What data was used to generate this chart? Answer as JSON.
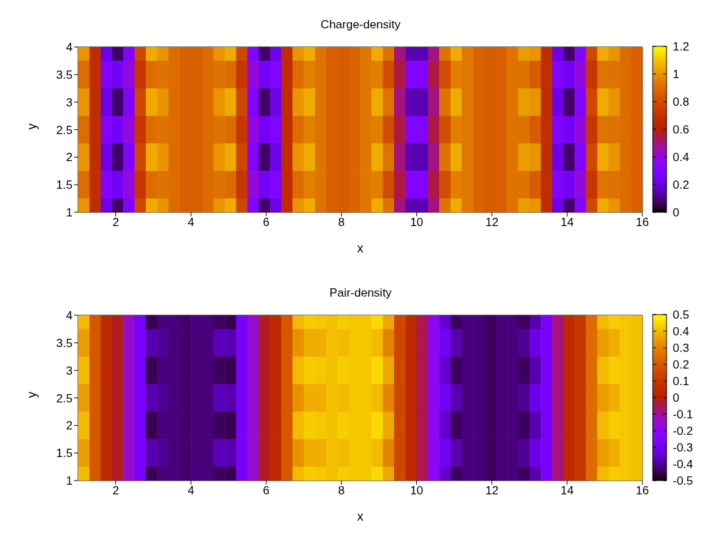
{
  "chart_data": [
    {
      "type": "heatmap",
      "title": "Charge-density",
      "xlabel": "x",
      "ylabel": "y",
      "x": [
        1.15,
        1.45,
        1.75,
        2.05,
        2.35,
        2.65,
        2.95,
        3.25,
        3.55,
        3.85,
        4.15,
        4.45,
        4.75,
        5.05,
        5.35,
        5.65,
        5.95,
        6.25,
        6.55,
        6.85,
        7.15,
        7.45,
        7.75,
        8.05,
        8.35,
        8.65,
        8.95,
        9.25,
        9.55,
        9.85,
        10.15,
        10.45,
        10.75,
        11.05,
        11.35,
        11.65,
        11.95,
        12.25,
        12.55,
        12.85,
        13.15,
        13.45,
        13.75,
        14.05,
        14.35,
        14.65,
        14.95,
        15.25,
        15.55,
        15.85
      ],
      "y": [
        4,
        3.5,
        3,
        2.5,
        2,
        1.5,
        1
      ],
      "cells": [
        [
          1.0,
          0.68,
          0.22,
          0.08,
          0.3,
          0.78,
          1.05,
          1.0,
          0.9,
          0.86,
          0.86,
          0.9,
          1.0,
          1.05,
          0.78,
          0.3,
          0.08,
          0.22,
          0.68,
          1.0,
          1.05,
          0.92,
          0.86,
          0.85,
          0.88,
          0.93,
          1.05,
          0.92,
          0.5,
          0.15,
          0.15,
          0.5,
          0.92,
          1.05,
          0.93,
          0.88,
          0.85,
          0.86,
          0.92,
          1.02,
          1.0,
          0.68,
          0.22,
          0.08,
          0.3,
          0.78,
          1.05,
          1.0,
          0.9,
          0.86
        ],
        [
          0.9,
          0.68,
          0.3,
          0.25,
          0.4,
          0.72,
          0.9,
          0.92,
          0.9,
          0.86,
          0.86,
          0.9,
          0.92,
          0.9,
          0.72,
          0.4,
          0.25,
          0.3,
          0.68,
          0.9,
          0.95,
          0.92,
          0.86,
          0.85,
          0.88,
          0.93,
          0.95,
          0.8,
          0.55,
          0.3,
          0.3,
          0.55,
          0.8,
          0.95,
          0.93,
          0.88,
          0.85,
          0.86,
          0.92,
          0.92,
          0.85,
          0.68,
          0.3,
          0.25,
          0.4,
          0.72,
          0.92,
          0.92,
          0.9,
          0.86
        ],
        [
          1.0,
          0.68,
          0.22,
          0.08,
          0.3,
          0.78,
          1.05,
          1.0,
          0.9,
          0.86,
          0.86,
          0.9,
          1.0,
          1.05,
          0.78,
          0.3,
          0.08,
          0.22,
          0.68,
          1.0,
          1.05,
          0.92,
          0.86,
          0.85,
          0.88,
          0.93,
          1.05,
          0.92,
          0.5,
          0.15,
          0.15,
          0.5,
          0.92,
          1.05,
          0.93,
          0.88,
          0.85,
          0.86,
          0.92,
          1.02,
          1.0,
          0.68,
          0.22,
          0.08,
          0.3,
          0.78,
          1.05,
          1.0,
          0.9,
          0.86
        ],
        [
          0.9,
          0.68,
          0.3,
          0.25,
          0.4,
          0.72,
          0.9,
          0.92,
          0.9,
          0.86,
          0.86,
          0.9,
          0.92,
          0.9,
          0.72,
          0.4,
          0.25,
          0.3,
          0.68,
          0.9,
          0.95,
          0.92,
          0.86,
          0.85,
          0.88,
          0.93,
          0.95,
          0.8,
          0.55,
          0.3,
          0.3,
          0.55,
          0.8,
          0.95,
          0.93,
          0.88,
          0.85,
          0.86,
          0.92,
          0.92,
          0.85,
          0.68,
          0.3,
          0.25,
          0.4,
          0.72,
          0.92,
          0.92,
          0.9,
          0.86
        ],
        [
          1.0,
          0.68,
          0.22,
          0.08,
          0.3,
          0.78,
          1.05,
          1.0,
          0.9,
          0.86,
          0.86,
          0.9,
          1.0,
          1.05,
          0.78,
          0.3,
          0.08,
          0.22,
          0.68,
          1.0,
          1.05,
          0.92,
          0.86,
          0.85,
          0.88,
          0.93,
          1.05,
          0.92,
          0.5,
          0.15,
          0.15,
          0.5,
          0.92,
          1.05,
          0.93,
          0.88,
          0.85,
          0.86,
          0.92,
          1.02,
          1.0,
          0.68,
          0.22,
          0.08,
          0.3,
          0.78,
          1.05,
          1.0,
          0.9,
          0.86
        ],
        [
          0.9,
          0.68,
          0.3,
          0.25,
          0.4,
          0.72,
          0.9,
          0.92,
          0.9,
          0.86,
          0.86,
          0.9,
          0.92,
          0.9,
          0.72,
          0.4,
          0.25,
          0.3,
          0.68,
          0.9,
          0.95,
          0.92,
          0.86,
          0.85,
          0.88,
          0.93,
          0.95,
          0.8,
          0.55,
          0.3,
          0.3,
          0.55,
          0.8,
          0.95,
          0.93,
          0.88,
          0.85,
          0.86,
          0.92,
          0.92,
          0.85,
          0.68,
          0.3,
          0.25,
          0.4,
          0.72,
          0.92,
          0.92,
          0.9,
          0.86
        ],
        [
          1.0,
          0.68,
          0.22,
          0.08,
          0.3,
          0.78,
          1.05,
          1.0,
          0.9,
          0.86,
          0.86,
          0.9,
          1.0,
          1.05,
          0.78,
          0.3,
          0.08,
          0.22,
          0.68,
          1.0,
          1.05,
          0.92,
          0.86,
          0.85,
          0.88,
          0.93,
          1.05,
          0.92,
          0.5,
          0.15,
          0.15,
          0.5,
          0.92,
          1.05,
          0.93,
          0.88,
          0.85,
          0.86,
          0.92,
          1.02,
          1.0,
          0.68,
          0.22,
          0.08,
          0.3,
          0.78,
          1.05,
          1.0,
          0.9,
          0.86
        ]
      ],
      "clim": [
        0,
        1.2
      ],
      "cticks": [
        0,
        0.2,
        0.4,
        0.6,
        0.8,
        1,
        1.2
      ],
      "xlim": [
        1,
        16
      ],
      "xticks": [
        2,
        4,
        6,
        8,
        10,
        12,
        14,
        16
      ],
      "ylim": [
        1,
        4
      ],
      "yticks": [
        1,
        1.5,
        2,
        2.5,
        3,
        3.5,
        4
      ]
    },
    {
      "type": "heatmap",
      "title": "Pair-density",
      "xlabel": "x",
      "ylabel": "y",
      "x": [
        1.15,
        1.45,
        1.75,
        2.05,
        2.35,
        2.65,
        2.95,
        3.25,
        3.55,
        3.85,
        4.15,
        4.45,
        4.75,
        5.05,
        5.35,
        5.65,
        5.95,
        6.25,
        6.55,
        6.85,
        7.15,
        7.45,
        7.75,
        8.05,
        8.35,
        8.65,
        8.95,
        9.25,
        9.55,
        9.85,
        10.15,
        10.45,
        10.75,
        11.05,
        11.35,
        11.65,
        11.95,
        12.25,
        12.55,
        12.85,
        13.15,
        13.45,
        13.75,
        14.05,
        14.35,
        14.65,
        14.95,
        15.25,
        15.55,
        15.85
      ],
      "y": [
        4,
        3.5,
        3,
        2.5,
        2,
        1.5,
        1
      ],
      "cells": [
        [
          0.4,
          0.2,
          0.05,
          -0.02,
          -0.15,
          -0.28,
          -0.45,
          -0.42,
          -0.42,
          -0.43,
          -0.42,
          -0.42,
          -0.44,
          -0.45,
          -0.28,
          -0.15,
          -0.02,
          0.05,
          0.2,
          0.4,
          0.43,
          0.42,
          0.41,
          0.43,
          0.42,
          0.42,
          0.45,
          0.37,
          0.15,
          0.05,
          -0.05,
          -0.2,
          -0.35,
          -0.44,
          -0.42,
          -0.42,
          -0.44,
          -0.42,
          -0.42,
          -0.44,
          -0.38,
          -0.28,
          -0.08,
          0.05,
          0.1,
          0.25,
          0.4,
          0.43,
          0.42,
          0.41
        ],
        [
          0.35,
          0.2,
          0.05,
          -0.02,
          -0.15,
          -0.28,
          -0.38,
          -0.4,
          -0.42,
          -0.43,
          -0.42,
          -0.42,
          -0.37,
          -0.38,
          -0.28,
          -0.15,
          -0.02,
          0.05,
          0.2,
          0.33,
          0.38,
          0.38,
          0.41,
          0.4,
          0.42,
          0.42,
          0.4,
          0.3,
          0.15,
          0.05,
          -0.05,
          -0.2,
          -0.3,
          -0.38,
          -0.42,
          -0.42,
          -0.44,
          -0.42,
          -0.42,
          -0.4,
          -0.32,
          -0.28,
          -0.08,
          0.05,
          0.1,
          0.25,
          0.35,
          0.38,
          0.42,
          0.41
        ],
        [
          0.4,
          0.2,
          0.05,
          -0.02,
          -0.15,
          -0.28,
          -0.45,
          -0.42,
          -0.42,
          -0.43,
          -0.42,
          -0.42,
          -0.44,
          -0.45,
          -0.28,
          -0.15,
          -0.02,
          0.05,
          0.2,
          0.4,
          0.43,
          0.42,
          0.41,
          0.43,
          0.42,
          0.42,
          0.45,
          0.37,
          0.15,
          0.05,
          -0.05,
          -0.2,
          -0.35,
          -0.44,
          -0.42,
          -0.42,
          -0.44,
          -0.42,
          -0.42,
          -0.44,
          -0.38,
          -0.28,
          -0.08,
          0.05,
          0.1,
          0.25,
          0.4,
          0.43,
          0.42,
          0.41
        ],
        [
          0.35,
          0.2,
          0.05,
          -0.02,
          -0.15,
          -0.28,
          -0.38,
          -0.4,
          -0.42,
          -0.43,
          -0.42,
          -0.42,
          -0.37,
          -0.38,
          -0.28,
          -0.15,
          -0.02,
          0.05,
          0.2,
          0.33,
          0.38,
          0.38,
          0.41,
          0.4,
          0.42,
          0.42,
          0.4,
          0.3,
          0.15,
          0.05,
          -0.05,
          -0.2,
          -0.3,
          -0.38,
          -0.42,
          -0.42,
          -0.44,
          -0.42,
          -0.42,
          -0.4,
          -0.32,
          -0.28,
          -0.08,
          0.05,
          0.1,
          0.25,
          0.35,
          0.38,
          0.42,
          0.41
        ],
        [
          0.4,
          0.2,
          0.05,
          -0.02,
          -0.15,
          -0.28,
          -0.45,
          -0.42,
          -0.42,
          -0.43,
          -0.42,
          -0.42,
          -0.44,
          -0.45,
          -0.28,
          -0.15,
          -0.02,
          0.05,
          0.2,
          0.4,
          0.43,
          0.42,
          0.41,
          0.43,
          0.42,
          0.42,
          0.45,
          0.37,
          0.15,
          0.05,
          -0.05,
          -0.2,
          -0.35,
          -0.44,
          -0.42,
          -0.42,
          -0.44,
          -0.42,
          -0.42,
          -0.44,
          -0.38,
          -0.28,
          -0.08,
          0.05,
          0.1,
          0.25,
          0.4,
          0.43,
          0.42,
          0.41
        ],
        [
          0.35,
          0.2,
          0.05,
          -0.02,
          -0.15,
          -0.28,
          -0.38,
          -0.4,
          -0.42,
          -0.43,
          -0.42,
          -0.42,
          -0.37,
          -0.38,
          -0.28,
          -0.15,
          -0.02,
          0.05,
          0.2,
          0.33,
          0.38,
          0.38,
          0.41,
          0.4,
          0.42,
          0.42,
          0.4,
          0.3,
          0.15,
          0.05,
          -0.05,
          -0.2,
          -0.3,
          -0.38,
          -0.42,
          -0.42,
          -0.44,
          -0.42,
          -0.42,
          -0.4,
          -0.32,
          -0.28,
          -0.08,
          0.05,
          0.1,
          0.25,
          0.35,
          0.38,
          0.42,
          0.41
        ],
        [
          0.4,
          0.2,
          0.05,
          -0.02,
          -0.15,
          -0.28,
          -0.45,
          -0.42,
          -0.42,
          -0.43,
          -0.42,
          -0.42,
          -0.44,
          -0.45,
          -0.28,
          -0.15,
          -0.02,
          0.05,
          0.2,
          0.4,
          0.43,
          0.42,
          0.41,
          0.43,
          0.42,
          0.42,
          0.45,
          0.37,
          0.15,
          0.05,
          -0.05,
          -0.2,
          -0.35,
          -0.44,
          -0.42,
          -0.42,
          -0.44,
          -0.42,
          -0.42,
          -0.44,
          -0.38,
          -0.28,
          -0.08,
          0.05,
          0.1,
          0.25,
          0.4,
          0.43,
          0.42,
          0.41
        ]
      ],
      "clim": [
        -0.5,
        0.5
      ],
      "cticks": [
        -0.5,
        -0.4,
        -0.3,
        -0.2,
        -0.1,
        0,
        0.1,
        0.2,
        0.3,
        0.4,
        0.5
      ],
      "xlim": [
        1,
        16
      ],
      "xticks": [
        2,
        4,
        6,
        8,
        10,
        12,
        14,
        16
      ],
      "ylim": [
        1,
        4
      ],
      "yticks": [
        1,
        1.5,
        2,
        2.5,
        3,
        3.5,
        4
      ]
    }
  ]
}
